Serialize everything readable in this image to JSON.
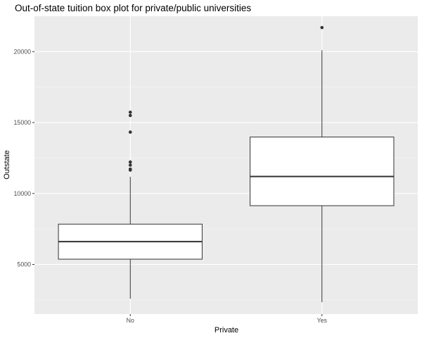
{
  "chart_data": {
    "type": "boxplot",
    "title": "Out-of-state tuition box plot for private/public universities",
    "xlabel": "Private",
    "ylabel": "Outstate",
    "categories": [
      "No",
      "Yes"
    ],
    "ylim": [
      1500,
      22500
    ],
    "y_ticks": [
      5000,
      10000,
      15000,
      20000
    ],
    "grid": true,
    "colors": {
      "panel_background": "#ebebeb",
      "grid_major": "#ffffff",
      "grid_minor": "#f5f5f5",
      "box_fill": "#ffffff",
      "box_stroke": "#333333",
      "outlier": "#333333"
    },
    "boxes": [
      {
        "category": "No",
        "whisker_low": 2580,
        "q1": 5370,
        "median": 6610,
        "q3": 7840,
        "whisker_high": 11180,
        "outliers": [
          15730,
          15500,
          14330,
          12220,
          12000,
          11720,
          11650
        ]
      },
      {
        "category": "Yes",
        "whisker_low": 2340,
        "q1": 9140,
        "median": 11200,
        "q3": 13980,
        "whisker_high": 20100,
        "outliers": [
          21700
        ]
      }
    ]
  }
}
